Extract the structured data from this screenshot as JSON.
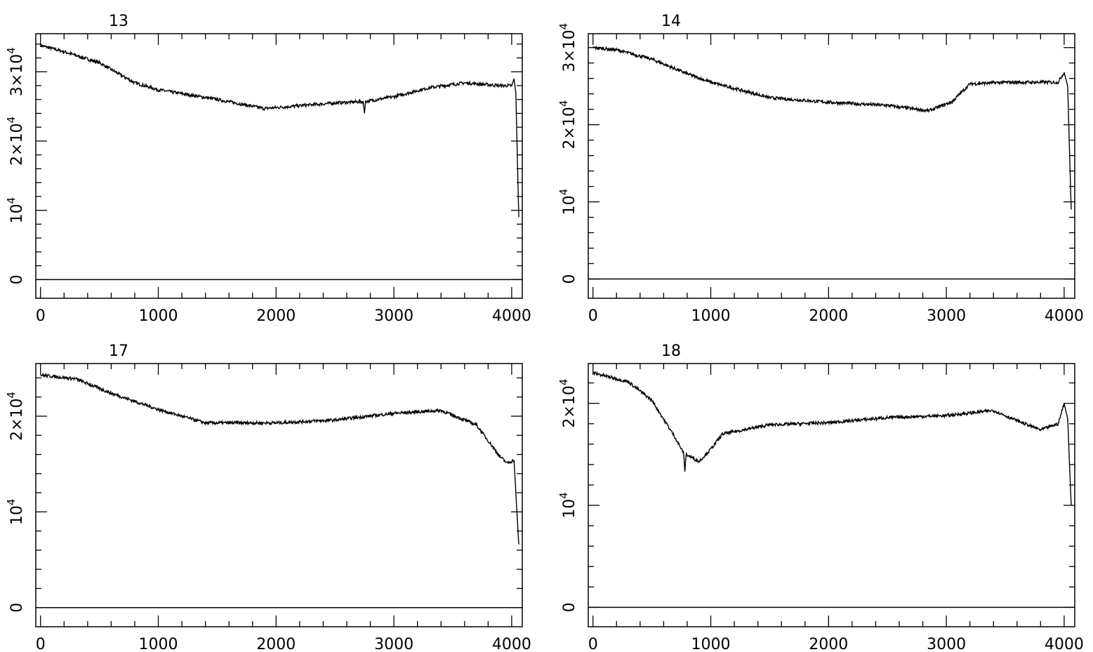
{
  "chart_data": [
    {
      "type": "line",
      "title": "13",
      "xlim": [
        -40,
        4090
      ],
      "ylim": [
        -2700,
        35500
      ],
      "xticks": [
        0,
        1000,
        2000,
        3000,
        4000
      ],
      "xtick_labels": [
        "0",
        "1000",
        "2000",
        "3000",
        "4000"
      ],
      "yticks": [
        0,
        10000,
        20000,
        30000
      ],
      "ytick_labels": [
        {
          "m": "0",
          "e": ""
        },
        {
          "m": "10",
          "e": "4"
        },
        {
          "m": "2×10",
          "e": "4"
        },
        {
          "m": "3×10",
          "e": "4"
        }
      ],
      "x": [
        0,
        200,
        500,
        800,
        1000,
        1500,
        1900,
        2500,
        2740,
        2750,
        2760,
        3000,
        3300,
        3600,
        3900,
        4000,
        4020,
        4035,
        4060
      ],
      "y": [
        33800,
        32900,
        31300,
        28400,
        27400,
        26000,
        24700,
        25500,
        25700,
        24000,
        25700,
        26400,
        27700,
        28400,
        28000,
        28000,
        29000,
        27000,
        9000
      ],
      "zero_line": true,
      "grid": false
    },
    {
      "type": "line",
      "title": "14",
      "xlim": [
        -40,
        4090
      ],
      "ylim": [
        -2500,
        31800
      ],
      "xticks": [
        0,
        1000,
        2000,
        3000,
        4000
      ],
      "xtick_labels": [
        "0",
        "1000",
        "2000",
        "3000",
        "4000"
      ],
      "yticks": [
        0,
        10000,
        20000,
        30000
      ],
      "ytick_labels": [
        {
          "m": "0",
          "e": ""
        },
        {
          "m": "10",
          "e": "4"
        },
        {
          "m": "2×10",
          "e": "4"
        },
        {
          "m": "3×10",
          "e": "4"
        }
      ],
      "x": [
        0,
        200,
        500,
        800,
        1000,
        1500,
        2000,
        2500,
        2850,
        3050,
        3200,
        3500,
        3950,
        4000,
        4030,
        4060
      ],
      "y": [
        30000,
        29700,
        28500,
        26600,
        25500,
        23500,
        22900,
        22500,
        21800,
        23000,
        25300,
        25500,
        25500,
        26800,
        25000,
        9000
      ],
      "zero_line": true,
      "grid": false
    },
    {
      "type": "line",
      "title": "17",
      "xlim": [
        -40,
        4090
      ],
      "ylim": [
        -2000,
        25500
      ],
      "xticks": [
        0,
        1000,
        2000,
        3000,
        4000
      ],
      "xtick_labels": [
        "0",
        "1000",
        "2000",
        "3000",
        "4000"
      ],
      "yticks": [
        0,
        10000,
        20000
      ],
      "ytick_labels": [
        {
          "m": "0",
          "e": ""
        },
        {
          "m": "10",
          "e": "4"
        },
        {
          "m": "2×10",
          "e": "4"
        }
      ],
      "x": [
        0,
        300,
        600,
        1000,
        1400,
        2000,
        2500,
        3000,
        3400,
        3700,
        3900,
        3960,
        4020,
        4060
      ],
      "y": [
        24300,
        23900,
        22400,
        20700,
        19300,
        19300,
        19600,
        20300,
        20600,
        19100,
        15800,
        15100,
        15400,
        6600
      ],
      "zero_line": true,
      "grid": false
    },
    {
      "type": "line",
      "title": "18",
      "xlim": [
        -40,
        4090
      ],
      "ylim": [
        -1900,
        23900
      ],
      "xticks": [
        0,
        1000,
        2000,
        3000,
        4000
      ],
      "xtick_labels": [
        "0",
        "1000",
        "2000",
        "3000",
        "4000"
      ],
      "yticks": [
        0,
        10000,
        20000
      ],
      "ytick_labels": [
        {
          "m": "0",
          "e": ""
        },
        {
          "m": "10",
          "e": "4"
        },
        {
          "m": "2×10",
          "e": "4"
        }
      ],
      "x": [
        0,
        300,
        500,
        700,
        770,
        780,
        790,
        900,
        1000,
        1100,
        1500,
        2000,
        2500,
        3000,
        3400,
        3600,
        3800,
        3950,
        4000,
        4030,
        4060
      ],
      "y": [
        23000,
        22100,
        20300,
        16600,
        15100,
        13300,
        15000,
        14300,
        15500,
        17000,
        17900,
        18100,
        18600,
        18800,
        19300,
        18300,
        17400,
        18000,
        20000,
        18500,
        10000
      ],
      "zero_line": true,
      "grid": false
    }
  ]
}
